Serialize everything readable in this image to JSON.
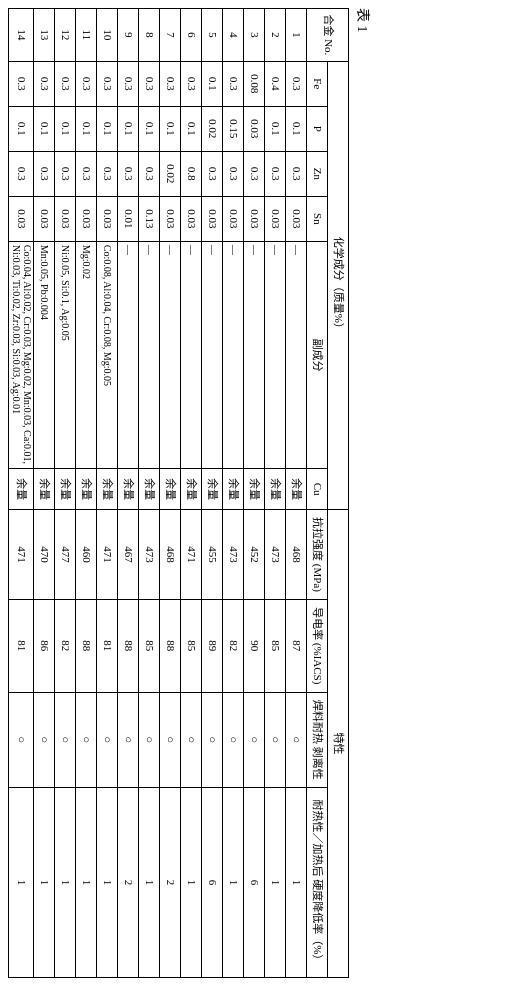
{
  "caption": "表 1",
  "header": {
    "alloy_no": "合金 No.",
    "chem_group": "化学成分（质量%）",
    "prop_group": "特性",
    "fe": "Fe",
    "p": "P",
    "zn": "Zn",
    "sn": "Sn",
    "sub": "副成分",
    "cu": "Cu",
    "ts": "抗拉强度\n(MPa)",
    "cond": "导电率\n(%IACS)",
    "solder": "焊料耐热\n剥离性",
    "heat": "耐热性／加热后\n硬度降低率（%）"
  },
  "rows": [
    {
      "no": "1",
      "fe": "0.3",
      "p": "0.1",
      "zn": "0.3",
      "sn": "0.03",
      "sub": "—",
      "cu": "余量",
      "ts": "468",
      "cond": "87",
      "solder": "○",
      "heat": "1"
    },
    {
      "no": "2",
      "fe": "0.4",
      "p": "0.1",
      "zn": "0.3",
      "sn": "0.03",
      "sub": "—",
      "cu": "余量",
      "ts": "473",
      "cond": "85",
      "solder": "○",
      "heat": "1"
    },
    {
      "no": "3",
      "fe": "0.08",
      "p": "0.03",
      "zn": "0.3",
      "sn": "0.03",
      "sub": "—",
      "cu": "余量",
      "ts": "452",
      "cond": "90",
      "solder": "○",
      "heat": "6"
    },
    {
      "no": "4",
      "fe": "0.3",
      "p": "0.15",
      "zn": "0.3",
      "sn": "0.03",
      "sub": "—",
      "cu": "余量",
      "ts": "473",
      "cond": "82",
      "solder": "○",
      "heat": "1"
    },
    {
      "no": "5",
      "fe": "0.1",
      "p": "0.02",
      "zn": "0.3",
      "sn": "0.03",
      "sub": "—",
      "cu": "余量",
      "ts": "455",
      "cond": "89",
      "solder": "○",
      "heat": "6"
    },
    {
      "no": "6",
      "fe": "0.3",
      "p": "0.1",
      "zn": "0.8",
      "sn": "0.03",
      "sub": "—",
      "cu": "余量",
      "ts": "471",
      "cond": "85",
      "solder": "○",
      "heat": "1"
    },
    {
      "no": "7",
      "fe": "0.3",
      "p": "0.1",
      "zn": "0.02",
      "sn": "0.03",
      "sub": "—",
      "cu": "余量",
      "ts": "468",
      "cond": "88",
      "solder": "○",
      "heat": "2"
    },
    {
      "no": "8",
      "fe": "0.3",
      "p": "0.1",
      "zn": "0.3",
      "sn": "0.13",
      "sub": "—",
      "cu": "余量",
      "ts": "473",
      "cond": "85",
      "solder": "○",
      "heat": "1"
    },
    {
      "no": "9",
      "fe": "0.3",
      "p": "0.1",
      "zn": "0.3",
      "sn": "0.01",
      "sub": "—",
      "cu": "余量",
      "ts": "467",
      "cond": "88",
      "solder": "○",
      "heat": "2"
    },
    {
      "no": "10",
      "fe": "0.3",
      "p": "0.1",
      "zn": "0.3",
      "sn": "0.03",
      "sub": "Co:0.08, Al:0.04, Cr:0.08, Mg:0.05",
      "cu": "余量",
      "ts": "471",
      "cond": "81",
      "solder": "○",
      "heat": "1"
    },
    {
      "no": "11",
      "fe": "0.3",
      "p": "0.1",
      "zn": "0.3",
      "sn": "0.03",
      "sub": "Mg:0.02",
      "cu": "余量",
      "ts": "460",
      "cond": "88",
      "solder": "○",
      "heat": "1"
    },
    {
      "no": "12",
      "fe": "0.3",
      "p": "0.1",
      "zn": "0.3",
      "sn": "0.03",
      "sub": "Ni:0.05, Si:0.1, Ag:0.05",
      "cu": "余量",
      "ts": "477",
      "cond": "82",
      "solder": "○",
      "heat": "1"
    },
    {
      "no": "13",
      "fe": "0.3",
      "p": "0.1",
      "zn": "0.3",
      "sn": "0.03",
      "sub": "Mn:0.05, Pb:0.004",
      "cu": "余量",
      "ts": "470",
      "cond": "86",
      "solder": "○",
      "heat": "1"
    },
    {
      "no": "14",
      "fe": "0.3",
      "p": "0.1",
      "zn": "0.3",
      "sn": "0.03",
      "sub": "Co:0.04, Al:0.02, Cr:0.03, Mg:0.02, Mn:0.03, Ca:0.01, Ni:0.03, Ti:0.02, Zr:0.03, Si:0.03, Ag:0.01",
      "cu": "余量",
      "ts": "471",
      "cond": "81",
      "solder": "○",
      "heat": "1"
    }
  ]
}
